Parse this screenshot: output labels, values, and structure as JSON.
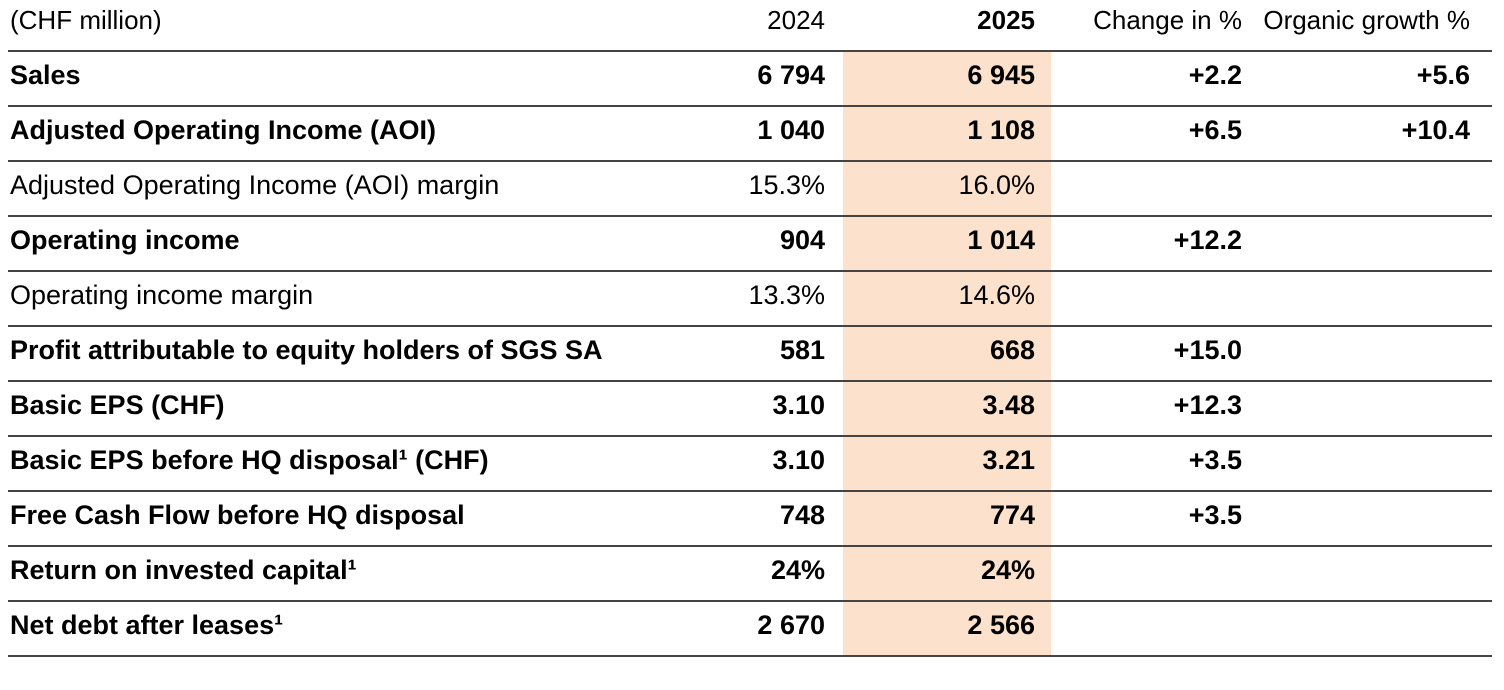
{
  "header": {
    "unit_label": "(CHF million)",
    "col_2024": "2024",
    "col_2025": "2025",
    "col_change": "Change in %",
    "col_organic": "Organic growth %"
  },
  "colors": {
    "highlight_2025_column": "#fce1cc",
    "rule_line": "#444444",
    "text": "#000000",
    "background": "#ffffff"
  },
  "rows": [
    {
      "label": "Sales",
      "bold": true,
      "y2024": "6 794",
      "y2025": "6 945",
      "change": "+2.2",
      "organic": "+5.6"
    },
    {
      "label": "Adjusted Operating Income (AOI)",
      "bold": true,
      "y2024": "1 040",
      "y2025": "1 108",
      "change": "+6.5",
      "organic": "+10.4"
    },
    {
      "label": "Adjusted Operating Income (AOI) margin",
      "bold": false,
      "y2024": "15.3%",
      "y2025": "16.0%",
      "change": "",
      "organic": ""
    },
    {
      "label": "Operating income",
      "bold": true,
      "y2024": "904",
      "y2025": "1 014",
      "change": "+12.2",
      "organic": ""
    },
    {
      "label": "Operating income margin",
      "bold": false,
      "y2024": "13.3%",
      "y2025": "14.6%",
      "change": "",
      "organic": ""
    },
    {
      "label": "Profit attributable to equity holders of SGS SA",
      "bold": true,
      "y2024": "581",
      "y2025": "668",
      "change": "+15.0",
      "organic": ""
    },
    {
      "label": "Basic EPS (CHF)",
      "bold": true,
      "y2024": "3.10",
      "y2025": "3.48",
      "change": "+12.3",
      "organic": ""
    },
    {
      "label": "Basic EPS before HQ disposal¹ (CHF)",
      "bold": true,
      "y2024": "3.10",
      "y2025": "3.21",
      "change": "+3.5",
      "organic": ""
    },
    {
      "label": "Free Cash Flow before HQ disposal",
      "bold": true,
      "y2024": "748",
      "y2025": "774",
      "change": "+3.5",
      "organic": ""
    },
    {
      "label": "Return on invested capital¹",
      "bold": true,
      "y2024": "24%",
      "y2025": "24%",
      "change": "",
      "organic": ""
    },
    {
      "label": "Net debt after leases¹",
      "bold": true,
      "y2024": "2 670",
      "y2025": "2 566",
      "change": "",
      "organic": ""
    }
  ],
  "chart_data": {
    "type": "table",
    "title": "",
    "columns": [
      "(CHF million)",
      "2024",
      "2025",
      "Change in %",
      "Organic growth %"
    ],
    "rows": [
      [
        "Sales",
        "6 794",
        "6 945",
        "+2.2",
        "+5.6"
      ],
      [
        "Adjusted Operating Income (AOI)",
        "1 040",
        "1 108",
        "+6.5",
        "+10.4"
      ],
      [
        "Adjusted Operating Income (AOI) margin",
        "15.3%",
        "16.0%",
        "",
        ""
      ],
      [
        "Operating income",
        "904",
        "1 014",
        "+12.2",
        ""
      ],
      [
        "Operating income margin",
        "13.3%",
        "14.6%",
        "",
        ""
      ],
      [
        "Profit attributable to equity holders of SGS SA",
        "581",
        "668",
        "+15.0",
        ""
      ],
      [
        "Basic EPS (CHF)",
        "3.10",
        "3.48",
        "+12.3",
        ""
      ],
      [
        "Basic EPS before HQ disposal¹ (CHF)",
        "3.10",
        "3.21",
        "+3.5",
        ""
      ],
      [
        "Free Cash Flow before HQ disposal",
        "748",
        "774",
        "+3.5",
        ""
      ],
      [
        "Return on invested capital¹",
        "24%",
        "24%",
        "",
        ""
      ],
      [
        "Net debt after leases¹",
        "2 670",
        "2 566",
        "",
        ""
      ]
    ],
    "layout_hints": {
      "highlighted_column": "2025",
      "highlight_color": "#fce1cc",
      "numeric_columns_right_aligned": true,
      "bold_rows": [
        0,
        1,
        3,
        5,
        6,
        7,
        8,
        9,
        10
      ],
      "regular_rows": [
        2,
        4
      ]
    }
  }
}
